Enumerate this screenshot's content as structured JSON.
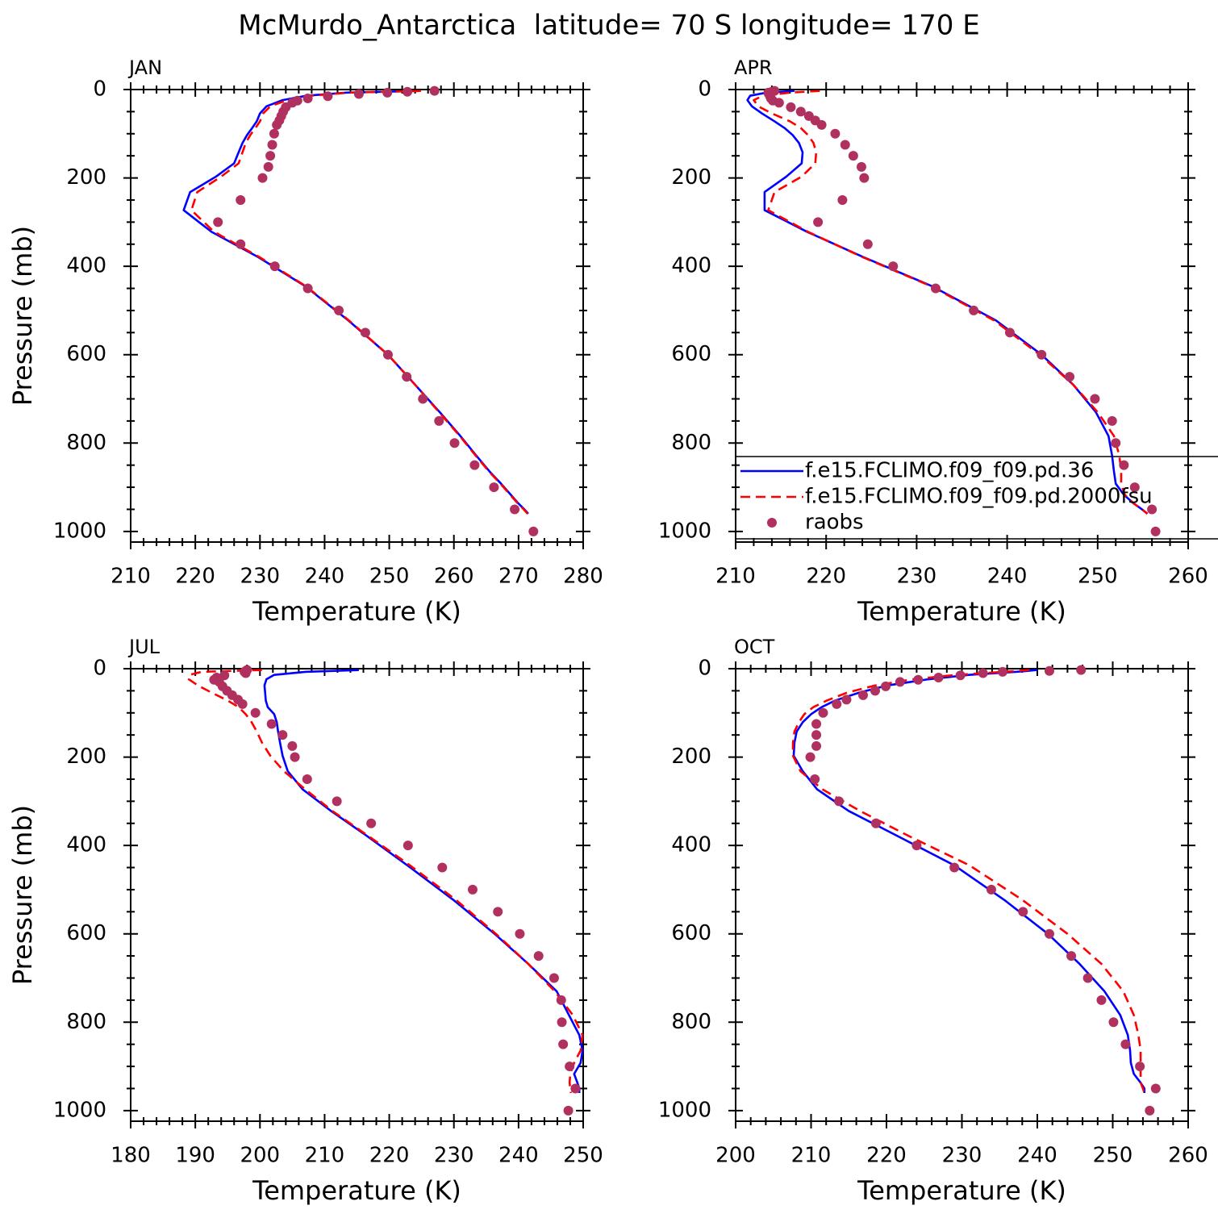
{
  "title": "McMurdo_Antarctica  latitude= 70 S longitude= 170 E",
  "chart_data": [
    {
      "type": "line",
      "title": "JAN",
      "xlabel": "Temperature (K)",
      "ylabel": "Pressure (mb)",
      "xlim": [
        210,
        280
      ],
      "xticks": [
        210,
        220,
        230,
        240,
        250,
        260,
        270,
        280
      ],
      "ylim": [
        1024,
        0
      ],
      "yticks": [
        0,
        200,
        400,
        600,
        800,
        1000
      ],
      "x_minor": 4,
      "y_minor": 3,
      "series": [
        {
          "color": "#0000ff",
          "style": "solid",
          "x": [
            254.7,
            243.4,
            237.2,
            233.5,
            231.0,
            230.0,
            229.5,
            228.8,
            228.0,
            227.3,
            226.7,
            226.0,
            223.2,
            219.2,
            218.2,
            222.5,
            229.7,
            237.0,
            243.7,
            249.8,
            254.0,
            257.8,
            261.0,
            263.5,
            265.5,
            267.3,
            268.8,
            270.0,
            270.9,
            271.5
          ],
          "y": [
            3,
            7,
            14,
            24,
            38,
            54,
            72,
            87,
            103,
            121,
            142,
            167,
            197,
            232,
            273,
            322,
            379,
            445,
            523,
            600,
            668,
            730,
            784,
            829,
            864,
            892,
            917,
            937,
            950,
            960
          ]
        },
        {
          "color": "#ff0000",
          "style": "dashed",
          "x": [
            254.9,
            243.8,
            237.8,
            234.2,
            231.6,
            230.5,
            230.0,
            229.3,
            228.5,
            227.8,
            227.3,
            226.7,
            224.0,
            220.3,
            219.4,
            222.9,
            229.9,
            237.1,
            243.8,
            249.8,
            254.0,
            257.7,
            260.9,
            263.4,
            265.4,
            267.2,
            268.7,
            269.9,
            270.8,
            271.4
          ],
          "y": [
            3,
            7,
            14,
            24,
            38,
            54,
            72,
            87,
            103,
            121,
            142,
            167,
            197,
            232,
            273,
            322,
            379,
            445,
            523,
            600,
            668,
            730,
            784,
            829,
            864,
            892,
            917,
            937,
            950,
            960
          ]
        },
        {
          "color": "#b0305f",
          "style": "markers",
          "x": [
            257.0,
            252.8,
            249.7,
            245.3,
            240.5,
            237.4,
            235.8,
            235.0,
            234.0,
            233.6,
            233.3,
            233.0,
            232.6,
            232.2,
            231.9,
            231.6,
            231.3,
            230.4,
            227.0,
            223.5,
            227.0,
            232.3,
            237.4,
            242.2,
            246.3,
            249.8,
            252.7,
            255.2,
            257.7,
            260.1,
            263.2,
            266.2,
            269.4,
            272.3
          ],
          "y": [
            3,
            5,
            7,
            10,
            15,
            20,
            25,
            30,
            40,
            50,
            60,
            70,
            80,
            100,
            125,
            150,
            175,
            200,
            250,
            300,
            350,
            400,
            450,
            500,
            550,
            600,
            650,
            700,
            750,
            800,
            850,
            900,
            950,
            1000
          ]
        }
      ]
    },
    {
      "type": "line",
      "title": "APR",
      "xlabel": "Temperature (K)",
      "xlim": [
        210,
        260
      ],
      "xticks": [
        210,
        220,
        230,
        240,
        250,
        260
      ],
      "ylim": [
        1024,
        0
      ],
      "yticks": [
        0,
        200,
        400,
        600,
        800,
        1000
      ],
      "x_minor": 4,
      "y_minor": 3,
      "legend": "lower right",
      "series": [
        {
          "name": "f.e15.FCLIMO.f09_f09.pd.36",
          "color": "#0000ff",
          "style": "solid",
          "x": [
            216.5,
            213.4,
            211.6,
            211.3,
            211.8,
            212.9,
            214.3,
            215.4,
            216.3,
            217.0,
            217.4,
            217.3,
            215.6,
            213.2,
            213.2,
            217.9,
            224.1,
            231.7,
            238.8,
            243.8,
            247.3,
            249.8,
            251.2,
            251.6,
            251.8,
            252.0,
            252.9,
            254.0,
            254.9,
            255.5
          ],
          "y": [
            3,
            7,
            14,
            24,
            38,
            54,
            72,
            87,
            103,
            121,
            142,
            167,
            197,
            232,
            273,
            322,
            379,
            445,
            523,
            600,
            668,
            730,
            784,
            829,
            864,
            892,
            917,
            937,
            950,
            960
          ]
        },
        {
          "name": "f.e15.FCLIMO.f09_f09.pd.2000fsu",
          "color": "#ff0000",
          "style": "dashed",
          "x": [
            219.3,
            216.0,
            213.0,
            212.0,
            212.5,
            214.0,
            216.0,
            217.2,
            218.0,
            218.6,
            218.9,
            218.8,
            217.3,
            214.3,
            213.6,
            218.0,
            224.0,
            231.6,
            238.6,
            243.6,
            247.3,
            250.0,
            251.8,
            252.4,
            252.6,
            252.6,
            253.0,
            254.0,
            254.9,
            255.5
          ],
          "y": [
            3,
            7,
            14,
            24,
            38,
            54,
            72,
            87,
            103,
            121,
            142,
            167,
            197,
            232,
            273,
            322,
            379,
            445,
            523,
            600,
            668,
            730,
            784,
            829,
            864,
            892,
            917,
            937,
            950,
            960
          ]
        },
        {
          "name": "raobs",
          "color": "#b0305f",
          "style": "markers",
          "x": [
            214.3,
            214.0,
            213.6,
            213.7,
            213.8,
            213.9,
            214.1,
            214.8,
            216.1,
            217.2,
            218.1,
            218.8,
            219.5,
            221.0,
            222.1,
            223.0,
            223.9,
            224.2,
            221.8,
            219.1,
            224.6,
            227.4,
            232.1,
            236.3,
            240.3,
            243.8,
            246.9,
            249.7,
            251.6,
            252.0,
            252.9,
            254.1,
            256.0,
            256.4
          ],
          "y": [
            3,
            5,
            7,
            10,
            15,
            20,
            25,
            30,
            40,
            50,
            60,
            70,
            80,
            100,
            125,
            150,
            175,
            200,
            250,
            300,
            350,
            400,
            450,
            500,
            550,
            600,
            650,
            700,
            750,
            800,
            850,
            900,
            950,
            1000
          ]
        }
      ]
    },
    {
      "type": "line",
      "title": "JUL",
      "xlabel": "Temperature (K)",
      "ylabel": "Pressure (mb)",
      "xlim": [
        180,
        250
      ],
      "xticks": [
        180,
        190,
        200,
        210,
        220,
        230,
        240,
        250
      ],
      "ylim": [
        1024,
        0
      ],
      "yticks": [
        0,
        200,
        400,
        600,
        800,
        1000
      ],
      "x_minor": 4,
      "y_minor": 3,
      "series": [
        {
          "color": "#0000ff",
          "style": "solid",
          "x": [
            215.3,
            207.2,
            202.2,
            201.0,
            200.7,
            200.8,
            200.9,
            201.2,
            202.2,
            202.6,
            202.8,
            203.1,
            203.5,
            204.3,
            206.6,
            211.0,
            216.6,
            222.8,
            229.9,
            236.3,
            241.5,
            245.9,
            247.8,
            249.4,
            249.9,
            249.6,
            248.6,
            249.1,
            249.4,
            249.4
          ],
          "y": [
            3,
            7,
            14,
            24,
            38,
            54,
            72,
            87,
            103,
            121,
            142,
            167,
            197,
            232,
            273,
            322,
            379,
            445,
            523,
            600,
            668,
            730,
            784,
            829,
            864,
            892,
            917,
            937,
            950,
            960
          ]
        },
        {
          "color": "#ff0000",
          "style": "dashed",
          "x": [
            200.3,
            191.0,
            189.1,
            189.0,
            190.4,
            192.5,
            195.0,
            196.7,
            197.8,
            198.7,
            199.5,
            200.3,
            201.6,
            203.7,
            207.0,
            211.2,
            216.8,
            223.2,
            230.3,
            236.5,
            241.5,
            245.6,
            248.4,
            249.9,
            249.6,
            248.6,
            248.0,
            247.9,
            248.0,
            248.1
          ],
          "y": [
            3,
            7,
            14,
            24,
            38,
            54,
            72,
            87,
            103,
            121,
            142,
            167,
            197,
            232,
            273,
            322,
            379,
            445,
            523,
            600,
            668,
            730,
            784,
            829,
            864,
            892,
            917,
            937,
            950,
            960
          ]
        },
        {
          "color": "#b0305f",
          "style": "markers",
          "x": [
            198.0,
            197.8,
            197.6,
            197.8,
            194.5,
            193.3,
            192.9,
            193.7,
            194.2,
            194.9,
            195.7,
            196.6,
            197.3,
            199.3,
            201.8,
            203.5,
            205.0,
            205.4,
            207.3,
            211.9,
            217.2,
            222.9,
            228.2,
            232.9,
            236.8,
            240.2,
            243.1,
            245.5,
            246.6,
            246.7,
            246.9,
            247.9,
            248.8,
            247.7
          ],
          "y": [
            3,
            5,
            7,
            10,
            15,
            20,
            25,
            30,
            40,
            50,
            60,
            70,
            80,
            100,
            125,
            150,
            175,
            200,
            250,
            300,
            350,
            400,
            450,
            500,
            550,
            600,
            650,
            700,
            750,
            800,
            850,
            900,
            950,
            1000
          ]
        }
      ]
    },
    {
      "type": "line",
      "title": "OCT",
      "xlabel": "Temperature (K)",
      "xlim": [
        200,
        260
      ],
      "xticks": [
        200,
        210,
        220,
        230,
        240,
        250,
        260
      ],
      "ylim": [
        1024,
        0
      ],
      "yticks": [
        0,
        200,
        400,
        600,
        800,
        1000
      ],
      "x_minor": 4,
      "y_minor": 3,
      "series": [
        {
          "color": "#0000ff",
          "style": "solid",
          "x": [
            240.0,
            237.3,
            230.9,
            225.5,
            220.1,
            216.4,
            213.2,
            211.4,
            210.0,
            208.9,
            208.1,
            207.8,
            207.7,
            208.9,
            210.8,
            215.0,
            221.5,
            229.0,
            235.6,
            241.4,
            245.6,
            248.9,
            251.0,
            252.0,
            252.3,
            252.4,
            252.8,
            253.7,
            254.2,
            254.2
          ],
          "y": [
            3,
            7,
            14,
            24,
            38,
            54,
            72,
            87,
            103,
            121,
            142,
            167,
            197,
            232,
            273,
            322,
            379,
            445,
            523,
            600,
            668,
            730,
            784,
            829,
            864,
            892,
            917,
            937,
            950,
            960
          ]
        },
        {
          "color": "#ff0000",
          "style": "dashed",
          "x": [
            238.9,
            235.7,
            229.3,
            223.4,
            218.5,
            214.8,
            212.1,
            210.3,
            209.1,
            208.4,
            207.8,
            207.6,
            207.6,
            208.6,
            211.5,
            216.5,
            223.0,
            231.0,
            238.0,
            244.0,
            248.5,
            251.4,
            252.8,
            253.4,
            253.7,
            253.7,
            253.7,
            253.7,
            254.0,
            254.2
          ],
          "y": [
            3,
            7,
            14,
            24,
            38,
            54,
            72,
            87,
            103,
            121,
            142,
            167,
            197,
            232,
            273,
            322,
            379,
            445,
            523,
            600,
            668,
            730,
            784,
            829,
            864,
            892,
            917,
            937,
            950,
            960
          ]
        },
        {
          "color": "#b0305f",
          "style": "markers",
          "x": [
            245.8,
            241.6,
            235.4,
            232.8,
            229.8,
            226.9,
            224.2,
            221.8,
            219.9,
            218.5,
            216.9,
            214.7,
            213.4,
            211.6,
            210.7,
            210.7,
            210.7,
            209.9,
            210.5,
            213.7,
            218.6,
            224.0,
            229.0,
            233.9,
            238.1,
            241.6,
            244.5,
            246.7,
            248.5,
            250.1,
            251.7,
            253.6,
            255.7,
            254.9
          ],
          "y": [
            3,
            5,
            7,
            10,
            15,
            20,
            25,
            30,
            40,
            50,
            60,
            70,
            80,
            100,
            125,
            150,
            175,
            200,
            250,
            300,
            350,
            400,
            450,
            500,
            550,
            600,
            650,
            700,
            750,
            800,
            850,
            900,
            950,
            1000
          ]
        }
      ]
    }
  ]
}
